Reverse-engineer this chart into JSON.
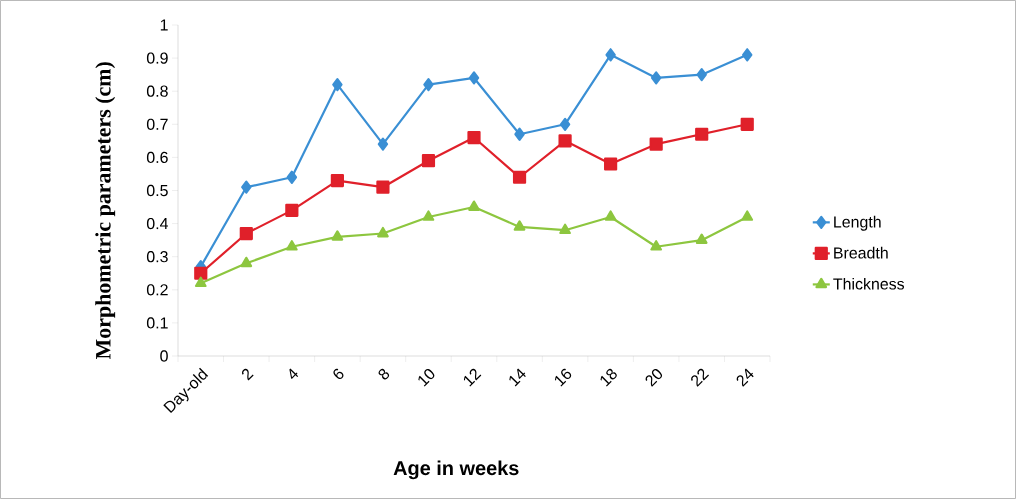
{
  "chart_data": {
    "type": "line",
    "xlabel": "Age in weeks",
    "ylabel": "Morphometric parameters (cm)",
    "categories": [
      "Day-old",
      "2",
      "4",
      "6",
      "8",
      "10",
      "12",
      "14",
      "16",
      "18",
      "20",
      "22",
      "24"
    ],
    "series": [
      {
        "name": "Length",
        "color": "#3a8fd4",
        "marker": "diamond",
        "values": [
          0.27,
          0.51,
          0.54,
          0.82,
          0.64,
          0.82,
          0.84,
          0.67,
          0.7,
          0.91,
          0.84,
          0.85,
          0.91
        ]
      },
      {
        "name": "Breadth",
        "color": "#e0202a",
        "marker": "square",
        "values": [
          0.25,
          0.37,
          0.44,
          0.53,
          0.51,
          0.59,
          0.66,
          0.54,
          0.65,
          0.58,
          0.64,
          0.67,
          0.7
        ]
      },
      {
        "name": "Thickness",
        "color": "#8dc63f",
        "marker": "triangle",
        "values": [
          0.22,
          0.28,
          0.33,
          0.36,
          0.37,
          0.42,
          0.45,
          0.39,
          0.38,
          0.42,
          0.33,
          0.35,
          0.42
        ]
      }
    ],
    "ylim": [
      0,
      1
    ],
    "yticks": [
      0,
      0.1,
      0.2,
      0.3,
      0.4,
      0.5,
      0.6,
      0.7,
      0.8,
      0.9,
      1
    ],
    "grid": false,
    "legend": "right"
  }
}
